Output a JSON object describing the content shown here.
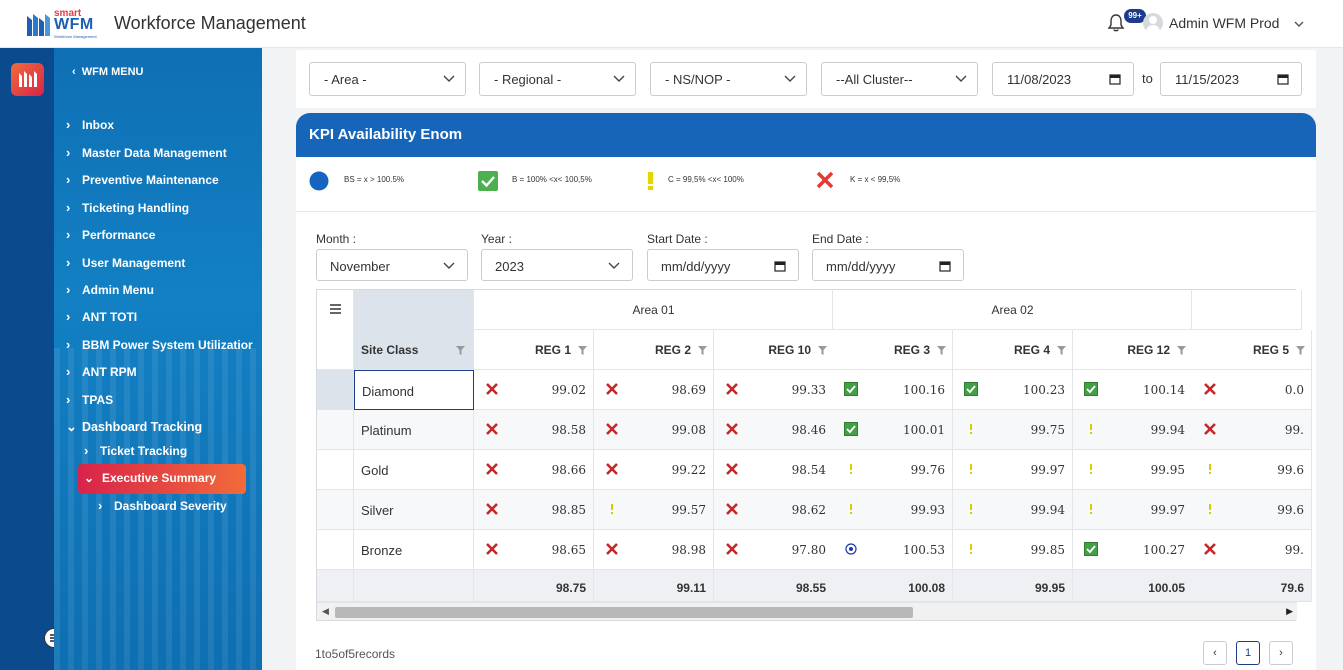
{
  "header": {
    "logo_small": "smart",
    "logo_main": "WFM",
    "logo_sub": "Workforce Management",
    "title": "Workforce Management",
    "notification_badge": "99+",
    "user_name": "Admin WFM Prod"
  },
  "sidebar": {
    "title": "WFM MENU",
    "items": [
      {
        "label": "Inbox"
      },
      {
        "label": "Master Data Management"
      },
      {
        "label": "Preventive Maintenance"
      },
      {
        "label": "Ticketing Handling"
      },
      {
        "label": "Performance"
      },
      {
        "label": "User Management"
      },
      {
        "label": "Admin Menu"
      },
      {
        "label": "ANT TOTI"
      },
      {
        "label": "BBM Power System Utilizatior"
      },
      {
        "label": "ANT RPM"
      },
      {
        "label": "TPAS"
      },
      {
        "label": "Dashboard Tracking"
      },
      {
        "label": "Ticket Tracking"
      },
      {
        "label": "Executive Summary"
      },
      {
        "label": "Dashboard Severity"
      }
    ]
  },
  "filters": {
    "area": "- Area -",
    "regional": "- Regional -",
    "nsnop": "- NS/NOP -",
    "cluster": "--All Cluster--",
    "date_from": "11/08/2023",
    "to_label": "to",
    "date_to": "11/15/2023"
  },
  "card": {
    "title": "KPI Availability Enom",
    "legend": [
      {
        "icon": "blue-circle-icon",
        "text": "BS = x > 100.5%",
        "color": "#1565c0"
      },
      {
        "icon": "green-check-icon",
        "text": "B = 100% <x< 100,5%",
        "color": "#4caf50"
      },
      {
        "icon": "yellow-exclamation-icon",
        "text": "C = 99,5% <x< 100%",
        "color": "#e6d600"
      },
      {
        "icon": "red-x-icon",
        "text": "K = x < 99,5%",
        "color": "#e53935"
      }
    ],
    "month_label": "Month :",
    "month_value": "November",
    "year_label": "Year :",
    "year_value": "2023",
    "start_label": "Start Date :",
    "start_placeholder": "mm/dd/yyyy",
    "end_label": "End Date :",
    "end_placeholder": "mm/dd/yyyy"
  },
  "table": {
    "site_class_header": "Site Class",
    "areas": [
      "Area 01",
      "Area 02"
    ],
    "columns": [
      "REG 1",
      "REG 2",
      "REG 10",
      "REG 3",
      "REG 4",
      "REG 12",
      "REG 5"
    ],
    "rows": [
      {
        "site": "Diamond",
        "cells": [
          {
            "s": "x",
            "v": "99.02"
          },
          {
            "s": "x",
            "v": "98.69"
          },
          {
            "s": "x",
            "v": "99.33"
          },
          {
            "s": "check",
            "v": "100.16"
          },
          {
            "s": "check",
            "v": "100.23"
          },
          {
            "s": "check",
            "v": "100.14"
          },
          {
            "s": "x",
            "v": "0.0"
          }
        ]
      },
      {
        "site": "Platinum",
        "cells": [
          {
            "s": "x",
            "v": "98.58"
          },
          {
            "s": "x",
            "v": "99.08"
          },
          {
            "s": "x",
            "v": "98.46"
          },
          {
            "s": "check",
            "v": "100.01"
          },
          {
            "s": "excl",
            "v": "99.75"
          },
          {
            "s": "excl",
            "v": "99.94"
          },
          {
            "s": "x",
            "v": "99."
          }
        ]
      },
      {
        "site": "Gold",
        "cells": [
          {
            "s": "x",
            "v": "98.66"
          },
          {
            "s": "x",
            "v": "99.22"
          },
          {
            "s": "x",
            "v": "98.54"
          },
          {
            "s": "excl",
            "v": "99.76"
          },
          {
            "s": "excl",
            "v": "99.97"
          },
          {
            "s": "excl",
            "v": "99.95"
          },
          {
            "s": "excl",
            "v": "99.6"
          }
        ]
      },
      {
        "site": "Silver",
        "cells": [
          {
            "s": "x",
            "v": "98.85"
          },
          {
            "s": "excl",
            "v": "99.57"
          },
          {
            "s": "x",
            "v": "98.62"
          },
          {
            "s": "excl",
            "v": "99.93"
          },
          {
            "s": "excl",
            "v": "99.94"
          },
          {
            "s": "excl",
            "v": "99.97"
          },
          {
            "s": "excl",
            "v": "99.6"
          }
        ]
      },
      {
        "site": "Bronze",
        "cells": [
          {
            "s": "x",
            "v": "98.65"
          },
          {
            "s": "x",
            "v": "98.98"
          },
          {
            "s": "x",
            "v": "97.80"
          },
          {
            "s": "dot",
            "v": "100.53"
          },
          {
            "s": "excl",
            "v": "99.85"
          },
          {
            "s": "check",
            "v": "100.27"
          },
          {
            "s": "x",
            "v": "99."
          }
        ]
      }
    ],
    "totals": [
      "98.75",
      "99.11",
      "98.55",
      "100.08",
      "99.95",
      "100.05",
      "79.6"
    ]
  },
  "footer": {
    "records": "1to5of5records",
    "prev": "‹",
    "page": "1",
    "next": "›"
  }
}
